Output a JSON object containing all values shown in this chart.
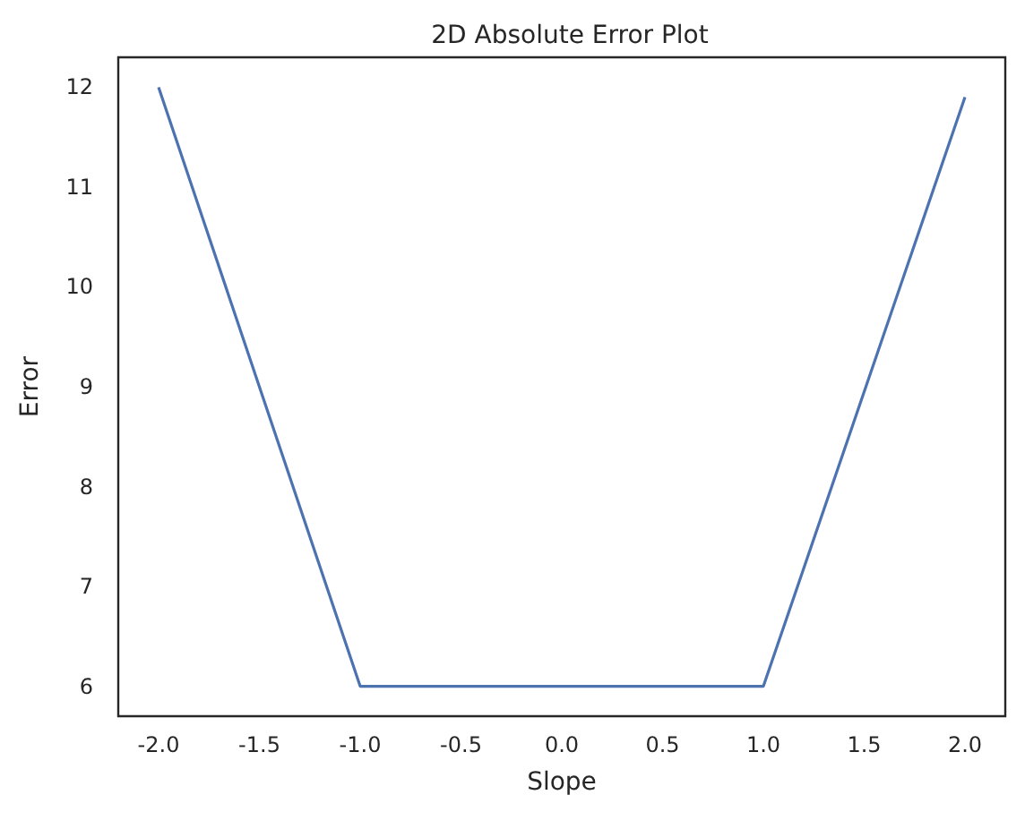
{
  "chart_data": {
    "type": "line",
    "title": "2D Absolute Error Plot",
    "xlabel": "Slope",
    "ylabel": "Error",
    "x": [
      -2,
      -1,
      1,
      2
    ],
    "series": [
      {
        "color": "#4c72b0",
        "values": [
          12,
          6,
          6,
          11.9
        ]
      }
    ],
    "xlim": [
      -2.2,
      2.2
    ],
    "xticks": [
      {
        "value": -2,
        "label": "-2.0"
      },
      {
        "value": -1.5,
        "label": "-1.5"
      },
      {
        "value": -1,
        "label": "-1.0"
      },
      {
        "value": -0.5,
        "label": "-0.5"
      },
      {
        "value": 0,
        "label": "0.0"
      },
      {
        "value": 0.5,
        "label": "0.5"
      },
      {
        "value": 1,
        "label": "1.0"
      },
      {
        "value": 1.5,
        "label": "1.5"
      },
      {
        "value": 2,
        "label": "2.0"
      }
    ],
    "ylim": [
      5.7,
      12.3
    ],
    "yticks": [
      6,
      7,
      8,
      9,
      10,
      11,
      12
    ],
    "grid": false,
    "marker": "none",
    "line_style": "solid"
  }
}
